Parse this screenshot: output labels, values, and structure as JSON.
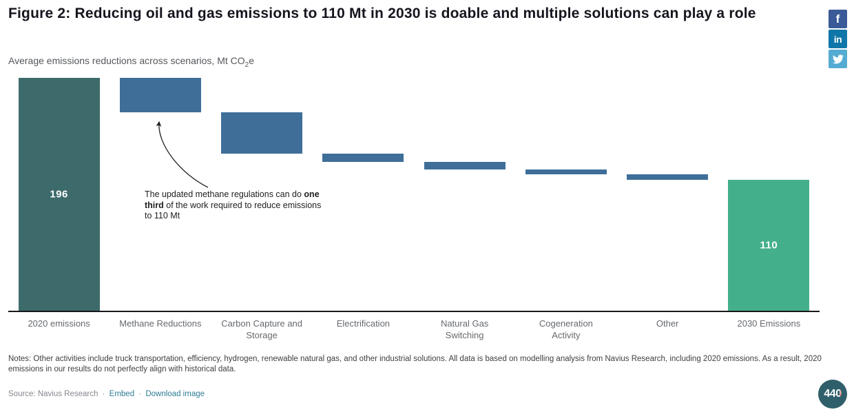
{
  "header": {
    "title": "Figure 2: Reducing oil and gas emissions to 110 Mt in 2030 is doable and multiple solutions can play a role",
    "subtitle_pre": "Average emissions reductions across scenarios, Mt CO",
    "subtitle_sub": "2",
    "subtitle_post": "e"
  },
  "share": {
    "facebook_label": "f",
    "linkedin_label": "in"
  },
  "chart_data": {
    "type": "waterfall-bar",
    "title": "Figure 2: Reducing oil and gas emissions to 110 Mt in 2030 is doable and multiple solutions can play a role",
    "subtitle": "Average emissions reductions across scenarios, Mt CO2e",
    "unit": "Mt CO2e",
    "ylim": [
      0,
      196
    ],
    "grid": false,
    "bars": [
      {
        "label": "2020 emissions",
        "start": 0,
        "end": 196,
        "value_label": "196",
        "role": "start"
      },
      {
        "label": "Methane Reductions",
        "start": 196,
        "end": 167,
        "role": "reduction"
      },
      {
        "label": "Carbon Capture and Storage",
        "start": 167,
        "end": 132,
        "role": "reduction"
      },
      {
        "label": "Electrification",
        "start": 132,
        "end": 125,
        "role": "reduction"
      },
      {
        "label": "Natural Gas Switching",
        "start": 125,
        "end": 119,
        "role": "reduction"
      },
      {
        "label": "Cogeneration Activity",
        "start": 119,
        "end": 115,
        "role": "reduction"
      },
      {
        "label": "Other",
        "start": 115,
        "end": 110,
        "role": "reduction"
      },
      {
        "label": "2030 Emissions",
        "start": 0,
        "end": 110,
        "value_label": "110",
        "role": "end"
      }
    ],
    "annotation": {
      "line1_pre": "The updated methane regulations can do ",
      "line1_bold": "one",
      "line2_bold": "third",
      "line2_post": " of the work required to reduce emissions",
      "line3": "to 110 Mt"
    }
  },
  "colors": {
    "bars": {
      "start": "#3D6A6B",
      "reduction": "#3F6E99",
      "end": "#44B08B"
    },
    "axis": "#17171C",
    "facebook": "#3A5A98",
    "linkedin": "#0E76A8",
    "twitter": "#55ACD2",
    "link": "#2E7D96",
    "logo_bg": "#2F5F6A",
    "logo_arrow": "#E8432E"
  },
  "notes": "Notes: Other activities include truck transportation, efficiency, hydrogen, renewable natural gas, and other industrial solutions. All data is based on modelling analysis from Navius Research, including 2020 emissions. As a result, 2020 emissions in our results do not perfectly align with historical data.",
  "source": {
    "label": "Source: Navius Research",
    "separator": "·",
    "embed_link": "Embed",
    "download_link": "Download image"
  },
  "logo": {
    "text": "440"
  }
}
